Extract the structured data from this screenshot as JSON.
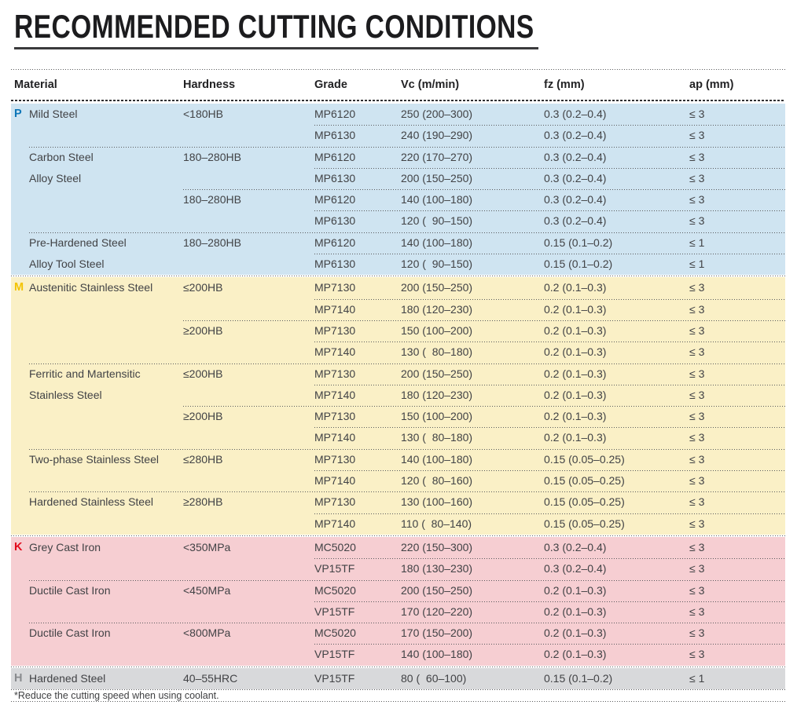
{
  "page": {
    "title": "RECOMMENDED CUTTING CONDITIONS",
    "footnote": "*Reduce the cutting speed when using coolant."
  },
  "table": {
    "columns": [
      "Material",
      "Hardness",
      "Grade",
      "Vc (m/min)",
      "fz (mm)",
      "ap (mm)"
    ],
    "sections": [
      {
        "iso": "P",
        "iso_color": "#0d76b8",
        "bg": "#cfe4f1",
        "rows": [
          {
            "marker": "P",
            "material": "Mild Steel",
            "hardness": "<180HB",
            "grade": "MP6120",
            "vc": "250 (200–300)",
            "fz": "0.3 (0.2–0.4)",
            "ap": "≤ 3",
            "sep": "none"
          },
          {
            "grade": "MP6130",
            "vc": "240 (190–290)",
            "fz": "0.3 (0.2–0.4)",
            "ap": "≤ 3",
            "sep": "grade"
          },
          {
            "material": "Carbon Steel",
            "hardness": "180–280HB",
            "grade": "MP6120",
            "vc": "220 (170–270)",
            "fz": "0.3 (0.2–0.4)",
            "ap": "≤ 3",
            "sep": "material"
          },
          {
            "material": "Alloy Steel",
            "grade": "MP6130",
            "vc": "200 (150–250)",
            "fz": "0.3 (0.2–0.4)",
            "ap": "≤ 3",
            "sep": "grade"
          },
          {
            "hardness": "180–280HB",
            "grade": "MP6120",
            "vc": "140 (100–180)",
            "fz": "0.3 (0.2–0.4)",
            "ap": "≤ 3",
            "sep": "hardness"
          },
          {
            "grade": "MP6130",
            "vc": "120 (  90–150)",
            "fz": "0.3 (0.2–0.4)",
            "ap": "≤ 3",
            "sep": "grade"
          },
          {
            "material": "Pre-Hardened Steel",
            "hardness": "180–280HB",
            "grade": "MP6120",
            "vc": "140 (100–180)",
            "fz": "0.15 (0.1–0.2)",
            "ap": "≤ 1",
            "sep": "material"
          },
          {
            "material": "Alloy Tool Steel",
            "grade": "MP6130",
            "vc": "120 (  90–150)",
            "fz": "0.15 (0.1–0.2)",
            "ap": "≤ 1",
            "sep": "grade"
          }
        ]
      },
      {
        "iso": "M",
        "iso_color": "#f3c300",
        "bg": "#faf0c6",
        "rows": [
          {
            "marker": "M",
            "material": "Austenitic Stainless Steel",
            "hardness": "≤200HB",
            "grade": "MP7130",
            "vc": "200 (150–250)",
            "fz": "0.2 (0.1–0.3)",
            "ap": "≤ 3",
            "sep": "none"
          },
          {
            "grade": "MP7140",
            "vc": "180 (120–230)",
            "fz": "0.2 (0.1–0.3)",
            "ap": "≤ 3",
            "sep": "grade"
          },
          {
            "hardness": "≥200HB",
            "grade": "MP7130",
            "vc": "150 (100–200)",
            "fz": "0.2 (0.1–0.3)",
            "ap": "≤ 3",
            "sep": "hardness"
          },
          {
            "grade": "MP7140",
            "vc": "130 (  80–180)",
            "fz": "0.2 (0.1–0.3)",
            "ap": "≤ 3",
            "sep": "grade"
          },
          {
            "material": "Ferritic and Martensitic",
            "hardness": "≤200HB",
            "grade": "MP7130",
            "vc": "200 (150–250)",
            "fz": "0.2 (0.1–0.3)",
            "ap": "≤ 3",
            "sep": "material"
          },
          {
            "material": "Stainless Steel",
            "grade": "MP7140",
            "vc": "180 (120–230)",
            "fz": "0.2 (0.1–0.3)",
            "ap": "≤ 3",
            "sep": "grade"
          },
          {
            "hardness": "≥200HB",
            "grade": "MP7130",
            "vc": "150 (100–200)",
            "fz": "0.2 (0.1–0.3)",
            "ap": "≤ 3",
            "sep": "hardness"
          },
          {
            "grade": "MP7140",
            "vc": "130 (  80–180)",
            "fz": "0.2 (0.1–0.3)",
            "ap": "≤ 3",
            "sep": "grade"
          },
          {
            "material": "Two-phase Stainless Steel",
            "hardness": "≤280HB",
            "grade": "MP7130",
            "vc": "140 (100–180)",
            "fz": "0.15 (0.05–0.25)",
            "ap": "≤ 3",
            "sep": "material"
          },
          {
            "grade": "MP7140",
            "vc": "120 (  80–160)",
            "fz": "0.15 (0.05–0.25)",
            "ap": "≤ 3",
            "sep": "grade"
          },
          {
            "material": "Hardened Stainless Steel",
            "hardness": "≥280HB",
            "grade": "MP7130",
            "vc": "130 (100–160)",
            "fz": "0.15 (0.05–0.25)",
            "ap": "≤ 3",
            "sep": "material"
          },
          {
            "grade": "MP7140",
            "vc": "110 (  80–140)",
            "fz": "0.15 (0.05–0.25)",
            "ap": "≤ 3",
            "sep": "grade"
          }
        ]
      },
      {
        "iso": "K",
        "iso_color": "#e30b1c",
        "bg": "#f6ced2",
        "rows": [
          {
            "marker": "K",
            "material": "Grey Cast Iron",
            "hardness": "<350MPa",
            "grade": "MC5020",
            "vc": "220 (150–300)",
            "fz": "0.3 (0.2–0.4)",
            "ap": "≤ 3",
            "sep": "none"
          },
          {
            "grade": "VP15TF",
            "vc": "180 (130–230)",
            "fz": "0.3 (0.2–0.4)",
            "ap": "≤ 3",
            "sep": "grade"
          },
          {
            "material": "Ductile Cast Iron",
            "hardness": "<450MPa",
            "grade": "MC5020",
            "vc": "200 (150–250)",
            "fz": "0.2 (0.1–0.3)",
            "ap": "≤ 3",
            "sep": "material"
          },
          {
            "grade": "VP15TF",
            "vc": "170 (120–220)",
            "fz": "0.2 (0.1–0.3)",
            "ap": "≤ 3",
            "sep": "grade"
          },
          {
            "material": "Ductile Cast Iron",
            "hardness": "<800MPa",
            "grade": "MC5020",
            "vc": "170 (150–200)",
            "fz": "0.2 (0.1–0.3)",
            "ap": "≤ 3",
            "sep": "material"
          },
          {
            "grade": "VP15TF",
            "vc": "140 (100–180)",
            "fz": "0.2 (0.1–0.3)",
            "ap": "≤ 3",
            "sep": "grade"
          }
        ]
      },
      {
        "iso": "H",
        "iso_color": "#898b8e",
        "bg": "#d8d9db",
        "rows": [
          {
            "marker": "H",
            "material": "Hardened Steel",
            "hardness": "40–55HRC",
            "grade": "VP15TF",
            "vc": "80 (  60–100)",
            "fz": "0.15 (0.1–0.2)",
            "ap": "≤ 1",
            "sep": "none"
          }
        ]
      }
    ]
  }
}
